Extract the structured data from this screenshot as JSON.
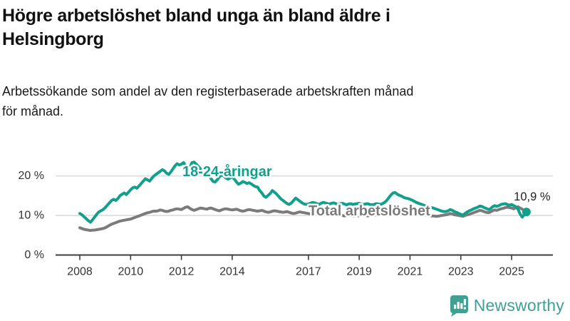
{
  "header": {
    "title_lines": [
      "Högre arbetslöshet bland unga än bland äldre i",
      "Helsingborg"
    ],
    "subtitle_lines": [
      "Arbetssökande som andel av den registerbaserade arbetskraften månad",
      "för månad."
    ]
  },
  "chart_data": {
    "type": "line",
    "title": "Högre arbetslöshet bland unga än bland äldre i Helsingborg",
    "subtitle": "Arbetssökande som andel av den registerbaserade arbetskraften månad för månad.",
    "x_unit": "month",
    "x_start": "2008-01",
    "x_tick_years": [
      2008,
      2010,
      2012,
      2014,
      2017,
      2019,
      2021,
      2023,
      2025
    ],
    "y_ticks": [
      0,
      10,
      20
    ],
    "y_tick_labels": [
      "0 %",
      "10 %",
      "20 %"
    ],
    "ylim": [
      0,
      25
    ],
    "unit": "%",
    "grid": "horizontal",
    "legend_position": "inline-labels",
    "series": [
      {
        "name": "Total arbetslöshet",
        "color": "#7b7b7b",
        "values": [
          6.9,
          6.7,
          6.5,
          6.4,
          6.3,
          6.2,
          6.3,
          6.3,
          6.4,
          6.5,
          6.6,
          6.7,
          6.9,
          7.2,
          7.5,
          7.8,
          8.0,
          8.2,
          8.4,
          8.6,
          8.7,
          8.8,
          8.9,
          9.0,
          9.1,
          9.3,
          9.5,
          9.7,
          9.9,
          10.1,
          10.3,
          10.5,
          10.7,
          10.8,
          11.0,
          11.1,
          11.1,
          11.2,
          11.4,
          11.3,
          11.1,
          11.0,
          11.1,
          11.3,
          11.4,
          11.6,
          11.7,
          11.6,
          11.5,
          11.8,
          12.1,
          12.2,
          11.8,
          11.5,
          11.3,
          11.5,
          11.7,
          11.9,
          11.8,
          11.7,
          11.6,
          11.8,
          11.9,
          11.7,
          11.5,
          11.3,
          11.2,
          11.4,
          11.6,
          11.7,
          11.6,
          11.5,
          11.4,
          11.5,
          11.6,
          11.4,
          11.2,
          11.1,
          11.2,
          11.4,
          11.5,
          11.4,
          11.3,
          11.2,
          11.1,
          11.2,
          11.3,
          11.1,
          10.9,
          10.8,
          10.9,
          11.1,
          11.2,
          11.1,
          11.0,
          10.9,
          10.8,
          10.9,
          11.0,
          10.8,
          10.6,
          10.5,
          10.6,
          10.8,
          10.9,
          10.8,
          10.7,
          10.6,
          10.5,
          10.4,
          10.5,
          10.6,
          10.4,
          10.2,
          10.3,
          10.4,
          10.3,
          10.2,
          10.1,
          10.2,
          10.1,
          10.0,
          10.1,
          10.2,
          10.0,
          9.9,
          10.0,
          10.1,
          10.0,
          9.9,
          9.9,
          10.0,
          9.9,
          10.0,
          10.1,
          10.0,
          9.9,
          10.0,
          10.1,
          10.2,
          10.1,
          10.0,
          10.1,
          10.2,
          10.4,
          10.8,
          11.2,
          11.6,
          11.8,
          11.8,
          11.7,
          11.5,
          11.4,
          11.3,
          11.2,
          11.1,
          11.0,
          10.9,
          10.8,
          10.6,
          10.5,
          10.4,
          10.3,
          10.2,
          10.1,
          10.0,
          9.9,
          9.9,
          9.8,
          9.8,
          9.9,
          10.0,
          10.1,
          10.2,
          10.3,
          10.5,
          10.4,
          10.2,
          10.1,
          10.0,
          9.9,
          9.8,
          10.0,
          10.2,
          10.3,
          10.5,
          10.7,
          10.9,
          11.1,
          11.3,
          11.2,
          11.0,
          10.8,
          10.7,
          10.9,
          11.2,
          11.4,
          11.3,
          11.5,
          11.7,
          11.8,
          12.0,
          12.1,
          12.0,
          11.9,
          11.7,
          12.0,
          12.2,
          11.9,
          11.6
        ]
      },
      {
        "name": "18-24-åringar",
        "color": "#12a08c",
        "end_annotation": "10,9 %",
        "end_value": 10.9,
        "values": [
          10.5,
          10.2,
          9.7,
          9.2,
          8.7,
          8.3,
          8.9,
          9.6,
          10.3,
          10.9,
          11.2,
          11.5,
          12.0,
          12.6,
          13.2,
          13.8,
          14.1,
          13.8,
          14.3,
          15.0,
          15.4,
          15.7,
          15.3,
          15.9,
          16.5,
          17.0,
          17.2,
          16.9,
          17.5,
          18.1,
          18.7,
          19.3,
          19.0,
          18.7,
          19.4,
          20.0,
          20.4,
          20.8,
          21.2,
          21.6,
          21.3,
          20.7,
          20.4,
          21.0,
          21.8,
          22.6,
          23.1,
          22.8,
          23.0,
          23.4,
          22.6,
          21.4,
          22.2,
          23.4,
          23.5,
          23.0,
          22.4,
          21.8,
          21.2,
          21.6,
          21.0,
          20.2,
          19.3,
          18.6,
          18.5,
          19.1,
          19.8,
          20.3,
          20.0,
          19.5,
          19.2,
          19.5,
          19.8,
          19.2,
          18.5,
          17.9,
          18.2,
          18.6,
          18.4,
          18.1,
          18.3,
          18.0,
          17.6,
          17.3,
          17.2,
          16.3,
          15.7,
          14.9,
          14.6,
          15.1,
          15.6,
          16.3,
          15.9,
          15.4,
          14.8,
          14.2,
          13.8,
          13.4,
          13.0,
          12.8,
          13.2,
          13.8,
          14.4,
          14.0,
          13.6,
          13.2,
          12.9,
          12.8,
          12.9,
          13.1,
          13.3,
          13.2,
          13.0,
          12.8,
          13.1,
          13.3,
          13.2,
          13.0,
          12.9,
          13.1,
          13.2,
          13.0,
          12.8,
          13.0,
          13.1,
          12.9,
          12.7,
          12.9,
          13.0,
          12.8,
          12.9,
          13.0,
          13.1,
          12.9,
          12.8,
          12.9,
          13.0,
          12.8,
          12.7,
          12.8,
          13.0,
          12.9,
          12.8,
          13.0,
          13.3,
          13.8,
          14.5,
          15.2,
          15.7,
          15.8,
          15.4,
          15.1,
          14.9,
          14.6,
          14.4,
          14.3,
          14.1,
          13.9,
          13.6,
          13.3,
          13.1,
          12.9,
          12.7,
          12.5,
          12.3,
          12.1,
          12.0,
          11.9,
          11.7,
          11.5,
          11.3,
          11.1,
          11.0,
          11.0,
          11.2,
          11.5,
          11.3,
          11.0,
          10.8,
          10.5,
          10.3,
          10.1,
          10.5,
          10.9,
          11.2,
          11.4,
          11.7,
          11.9,
          12.1,
          12.4,
          12.3,
          12.0,
          11.8,
          11.5,
          11.7,
          12.2,
          12.5,
          12.3,
          12.5,
          12.8,
          12.9,
          13.0,
          12.8,
          12.6,
          12.8,
          12.5,
          12.2,
          11.6,
          10.4,
          9.6,
          10.2,
          10.9
        ]
      }
    ]
  },
  "logo": {
    "name": "Newsworthy"
  },
  "colors": {
    "accent_teal": "#12a08c",
    "series_gray": "#7b7b7b",
    "grid": "#dcdcdc",
    "axis": "#3d3d3d",
    "text": "#333333",
    "logo_teal": "#3fa093"
  }
}
